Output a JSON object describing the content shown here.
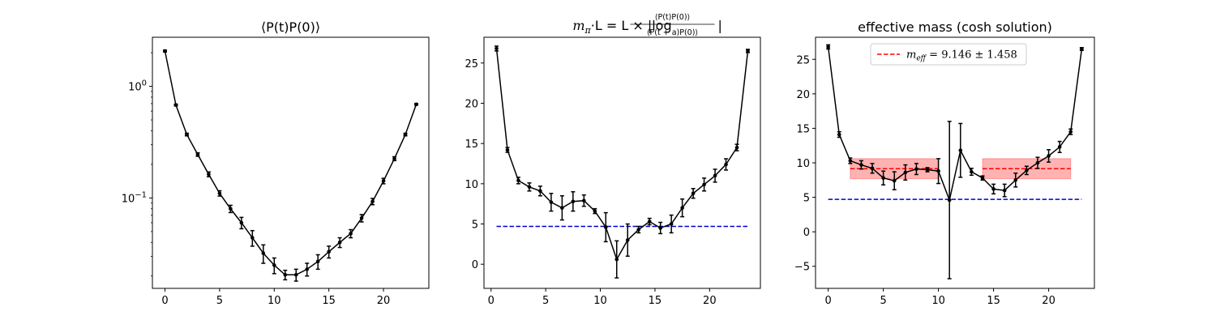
{
  "chart_data": [
    {
      "type": "line",
      "title": "⟨P(t)P(0)⟩",
      "yscale": "log",
      "xlim": [
        -1.15,
        24.15
      ],
      "ylim": [
        0.0155,
        2.75
      ],
      "xticks": [
        0,
        5,
        10,
        15,
        20
      ],
      "xtick_labels": [
        "0",
        "5",
        "10",
        "15",
        "20"
      ],
      "ytick_labels": [
        {
          "value": 1,
          "base": "10",
          "exp": "0"
        },
        {
          "value": 0.1,
          "base": "10",
          "exp": "−1"
        }
      ],
      "series": [
        {
          "name": "correlator",
          "x": [
            0,
            1,
            2,
            3,
            4,
            5,
            6,
            7,
            8,
            9,
            10,
            11,
            12,
            13,
            14,
            15,
            16,
            17,
            18,
            19,
            20,
            21,
            22,
            23
          ],
          "y": [
            2.07,
            0.68,
            0.37,
            0.245,
            0.163,
            0.11,
            0.08,
            0.06,
            0.044,
            0.032,
            0.025,
            0.0205,
            0.0205,
            0.023,
            0.027,
            0.033,
            0.04,
            0.048,
            0.066,
            0.093,
            0.142,
            0.225,
            0.37,
            0.69
          ],
          "err": [
            0.04,
            0.012,
            0.01,
            0.009,
            0.008,
            0.006,
            0.006,
            0.007,
            0.007,
            0.006,
            0.004,
            0.002,
            0.0025,
            0.003,
            0.004,
            0.004,
            0.004,
            0.004,
            0.005,
            0.006,
            0.008,
            0.009,
            0.01,
            0.012
          ]
        }
      ]
    },
    {
      "type": "line",
      "title": "mπ·L = L × |log(⟨P(t)P(0)⟩ / ⟨P(t+a)P(0)⟩)|",
      "title_parts": {
        "lhs_m": "m",
        "lhs_sub": "π",
        "lhs_rest": "·L = L × |log",
        "numerator": "⟨P(t)P(0)⟩",
        "denominator": "⟨P(t + a)P(0)⟩",
        "close": "|"
      },
      "yscale": "linear",
      "xlim": [
        -0.65,
        24.65
      ],
      "ylim": [
        -3.0,
        28.2
      ],
      "xticks": [
        0,
        5,
        10,
        15,
        20
      ],
      "xtick_labels": [
        "0",
        "5",
        "10",
        "15",
        "20"
      ],
      "yticks": [
        0,
        5,
        10,
        15,
        20,
        25
      ],
      "ytick_labels": [
        "0",
        "5",
        "10",
        "15",
        "20",
        "25"
      ],
      "hline": {
        "y": 4.7,
        "x_range": [
          0.5,
          23.5
        ],
        "color": "#0000cc",
        "style": "dashed"
      },
      "series": [
        {
          "name": "m_pi L",
          "x": [
            0.5,
            1.5,
            2.5,
            3.5,
            4.5,
            5.5,
            6.5,
            7.5,
            8.5,
            9.5,
            10.5,
            11.5,
            12.5,
            13.5,
            14.5,
            15.5,
            16.5,
            17.5,
            18.5,
            19.5,
            20.5,
            21.5,
            22.5,
            23.5
          ],
          "y": [
            26.8,
            14.2,
            10.4,
            9.6,
            9.1,
            7.7,
            7.0,
            7.8,
            7.9,
            6.6,
            4.6,
            0.6,
            3.0,
            4.3,
            5.3,
            4.5,
            5.0,
            7.0,
            8.8,
            9.9,
            11.0,
            12.4,
            14.5,
            26.5
          ],
          "err": [
            0.3,
            0.3,
            0.4,
            0.5,
            0.6,
            1.1,
            1.5,
            1.2,
            0.7,
            0.3,
            1.8,
            2.3,
            2.0,
            0.4,
            0.4,
            0.7,
            1.1,
            1.1,
            0.6,
            0.8,
            0.8,
            0.7,
            0.4,
            0.2
          ]
        }
      ]
    },
    {
      "type": "line",
      "title": "effective mass (cosh solution)",
      "yscale": "linear",
      "xlim": [
        -1.15,
        24.15
      ],
      "ylim": [
        -8.2,
        28.2
      ],
      "xticks": [
        0,
        5,
        10,
        15,
        20
      ],
      "xtick_labels": [
        "0",
        "5",
        "10",
        "15",
        "20"
      ],
      "yticks": [
        -5,
        0,
        5,
        10,
        15,
        20,
        25
      ],
      "ytick_labels": [
        "−5",
        "0",
        "5",
        "10",
        "15",
        "20",
        "25"
      ],
      "hline": {
        "y": 4.7,
        "x_range": [
          0,
          23
        ],
        "color": "#0000cc",
        "style": "dashed"
      },
      "fit_bands": [
        {
          "x_range": [
            2,
            10
          ],
          "y": 9.146,
          "err": 1.458
        },
        {
          "x_range": [
            14,
            22
          ],
          "y": 9.146,
          "err": 1.458
        }
      ],
      "legend": {
        "location": "top-center",
        "color": "#ff0000",
        "label_m": "m",
        "label_sub": "eff",
        "label_value": " = 9.146 ± 1.458"
      },
      "series": [
        {
          "name": "effective mass",
          "x": [
            0,
            1,
            2,
            3,
            4,
            5,
            6,
            7,
            8,
            9,
            10,
            11,
            12,
            13,
            14,
            15,
            16,
            17,
            18,
            19,
            20,
            21,
            22,
            23
          ],
          "y": [
            26.8,
            14.1,
            10.3,
            9.7,
            9.2,
            7.8,
            7.4,
            8.6,
            9.1,
            9.0,
            8.8,
            4.6,
            11.8,
            8.7,
            7.8,
            6.2,
            6.0,
            7.5,
            8.9,
            10.0,
            11.0,
            12.3,
            14.5,
            26.5
          ],
          "err": [
            0.3,
            0.4,
            0.4,
            0.6,
            0.7,
            1.0,
            1.3,
            1.1,
            0.8,
            0.3,
            1.8,
            11.4,
            3.9,
            0.5,
            0.3,
            0.7,
            0.9,
            1.0,
            0.6,
            0.8,
            0.9,
            0.8,
            0.4,
            0.2
          ]
        }
      ]
    }
  ]
}
